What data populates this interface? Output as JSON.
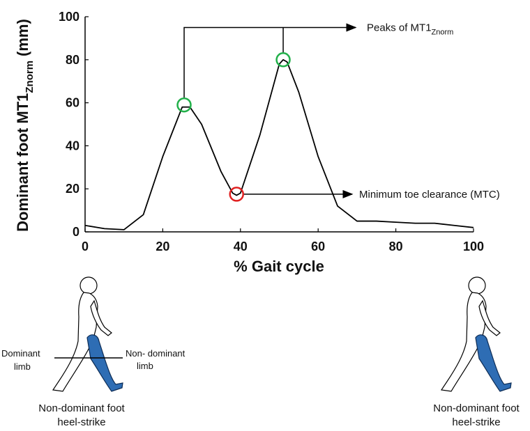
{
  "chart_data": {
    "type": "line",
    "x": [
      0,
      5,
      10,
      15,
      20,
      25,
      27,
      30,
      35,
      38,
      39,
      40,
      45,
      50,
      51,
      52,
      55,
      60,
      65,
      70,
      75,
      80,
      85,
      90,
      95,
      100
    ],
    "values": [
      3,
      1.5,
      1,
      8,
      35,
      58,
      58,
      50,
      28,
      18,
      17,
      18,
      45,
      78,
      80,
      79,
      65,
      35,
      12,
      5,
      5,
      4.5,
      4,
      4,
      3,
      2
    ],
    "color": "#000000",
    "xlim": [
      0,
      100
    ],
    "ylim": [
      0,
      100
    ],
    "xticks": [
      0,
      20,
      40,
      60,
      80,
      100
    ],
    "yticks": [
      0,
      20,
      40,
      60,
      80,
      100
    ],
    "xlabel": "% Gait cycle",
    "ylabel": {
      "main": "Dominant foot MT1",
      "sub": "Znorm",
      "unit": "(mm)"
    },
    "markers": [
      {
        "x": 25.5,
        "y": 59,
        "color": "#22b04a"
      },
      {
        "x": 51,
        "y": 80,
        "color": "#22b04a"
      },
      {
        "x": 39,
        "y": 17.5,
        "color": "#e02020"
      }
    ],
    "annotations": {
      "peaks": {
        "main": "Peaks of MT1",
        "sub": "Znorm",
        "y": 95
      },
      "mtc": "Minimum toe clearance (MTC)"
    }
  },
  "figures": {
    "left": {
      "dominant": [
        "Dominant",
        "limb"
      ],
      "non_dominant": [
        "Non- dominant",
        "limb"
      ],
      "caption": [
        "Non-dominant foot",
        "heel-strike"
      ]
    },
    "right": {
      "caption": [
        "Non-dominant foot",
        "heel-strike"
      ]
    }
  }
}
